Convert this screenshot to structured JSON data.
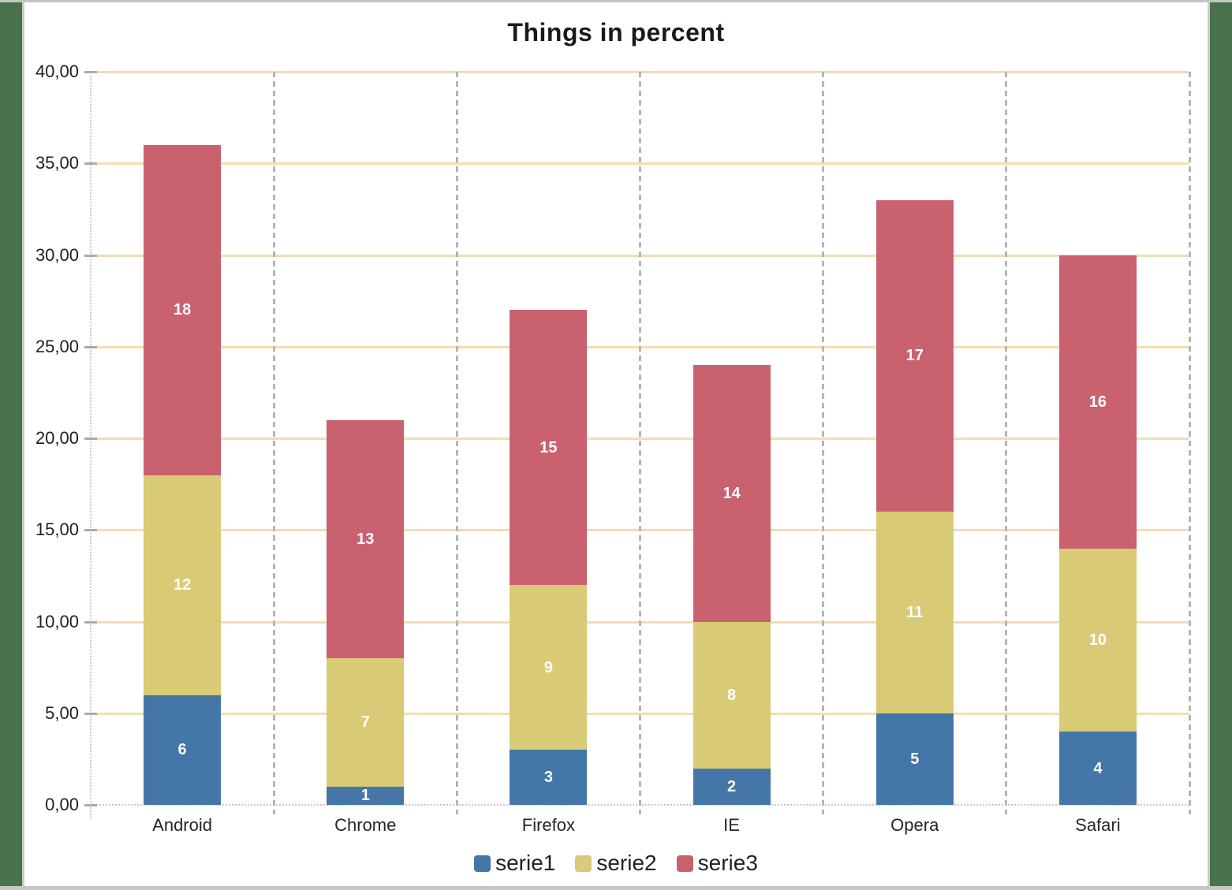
{
  "page": {
    "frame_color": "#47724C",
    "edge_color": "#C6C6C6",
    "canvas_color": "#FFFFFF"
  },
  "chart_data": {
    "type": "bar",
    "stacked": true,
    "title": "Things in percent",
    "categories": [
      "Android",
      "Chrome",
      "Firefox",
      "IE",
      "Opera",
      "Safari"
    ],
    "series": [
      {
        "name": "serie1",
        "color": "#4576A8",
        "values": [
          6,
          1,
          3,
          2,
          5,
          4
        ]
      },
      {
        "name": "serie2",
        "color": "#D9CA76",
        "values": [
          12,
          7,
          9,
          8,
          11,
          10
        ]
      },
      {
        "name": "serie3",
        "color": "#C9616F",
        "values": [
          18,
          13,
          15,
          14,
          17,
          16
        ]
      }
    ],
    "totals": [
      36,
      21,
      27,
      24,
      33,
      30
    ],
    "ylim": [
      0,
      40
    ],
    "ytick_step": 5,
    "ytick_labels": [
      "0,00",
      "5,00",
      "10,00",
      "15,00",
      "20,00",
      "25,00",
      "30,00",
      "35,00",
      "40,00"
    ],
    "xlabel": "",
    "ylabel": "",
    "grid": {
      "horizontal": true,
      "horizontal_color": "#F2DEB2",
      "vertical_separators": "dashed",
      "vertical_color": "#B5B5B5"
    },
    "legend_position": "bottom",
    "data_labels": "segment values, white, centered"
  }
}
